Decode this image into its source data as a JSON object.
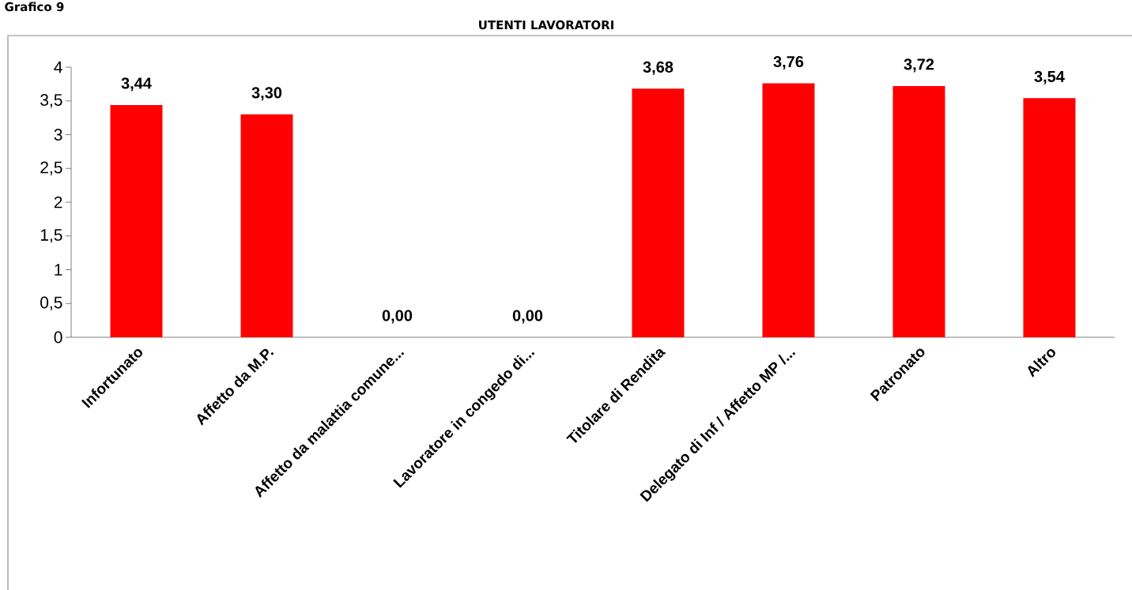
{
  "chart_data": {
    "type": "bar",
    "title": "UTENTI LAVORATORI",
    "annotations": [
      "Grafico 9"
    ],
    "categories": [
      "Infortunato",
      "Affetto da M.P.",
      "Affetto da malattia comune...",
      "Lavoratore in congedo di...",
      "Titolare di Rendita",
      "Delegato di Inf / Affetto MP /...",
      "Patronato",
      "Altro"
    ],
    "values": [
      3.44,
      3.3,
      0.0,
      0.0,
      3.68,
      3.76,
      3.72,
      3.54
    ],
    "value_labels": [
      "3,44",
      "3,30",
      "0,00",
      "0,00",
      "3,68",
      "3,76",
      "3,72",
      "3,54"
    ],
    "color": "#ff0000",
    "ylim": [
      0,
      4
    ],
    "yticks": [
      0,
      {
        "value": 0.5,
        "label": "0,5"
      },
      1,
      {
        "value": 1.5,
        "label": "1,5"
      },
      2,
      {
        "value": 2.5,
        "label": "2,5"
      },
      3,
      {
        "value": 3.5,
        "label": "3,5"
      },
      4
    ],
    "grid": false
  }
}
